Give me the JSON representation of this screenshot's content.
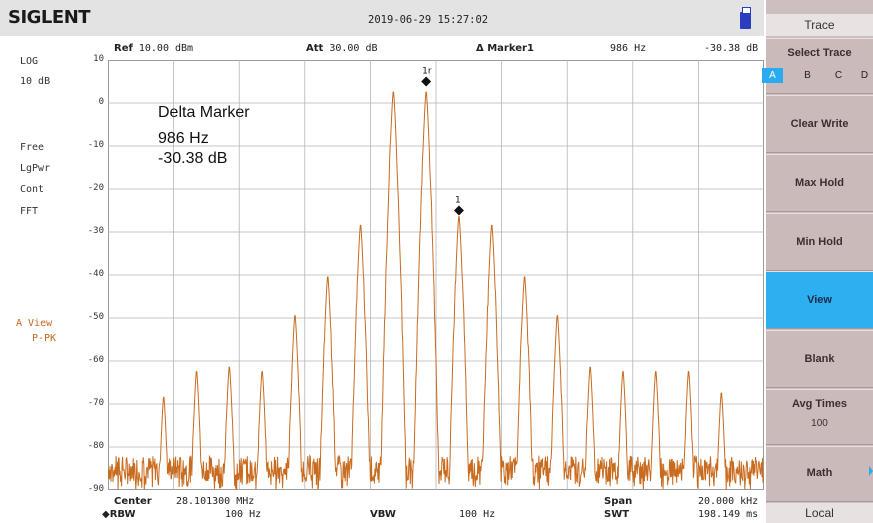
{
  "header": {
    "brand": "SIGLENT",
    "datetime": "2019-06-29  15:27:02"
  },
  "left_panel": {
    "scale_type": "LOG",
    "scale_div": "10 dB",
    "trig": "Free",
    "detector": "LgPwr",
    "sweep_mode": "Cont",
    "sweep_type": "FFT",
    "trace_state": "A View",
    "trace_det": "P-PK"
  },
  "status_row": {
    "ref_label": "Ref",
    "ref_value": "10.00 dBm",
    "att_label": "Att",
    "att_value": "30.00 dB",
    "marker_label": "Δ Marker1",
    "marker_freq": "986 Hz",
    "marker_amp": "-30.38 dB"
  },
  "annotation": {
    "line1": "Delta Marker",
    "line2": "986 Hz",
    "line3": "-30.38 dB"
  },
  "markers": {
    "ref_label": "1r",
    "delta_label": "1"
  },
  "bottom": {
    "center_label": "Center",
    "center_value": "28.101300 MHz",
    "span_label": "Span",
    "span_value": "20.000 kHz",
    "rbw_label": "◆RBW",
    "rbw_value": "100 Hz",
    "vbw_label": "VBW",
    "vbw_value": "100 Hz",
    "swt_label": "SWT",
    "swt_value": "198.149 ms"
  },
  "menu": {
    "title": "Trace",
    "select_trace": "Select Trace",
    "traces": [
      "A",
      "B",
      "C",
      "D"
    ],
    "selected_trace": "A",
    "items": [
      "Clear Write",
      "Max Hold",
      "Min Hold",
      "View",
      "Blank",
      "Avg Times",
      "Math"
    ],
    "active_item": "View",
    "avg_times_value": "100",
    "local": "Local"
  },
  "chart_data": {
    "type": "line",
    "y_ticks": [
      "10",
      "0",
      "-10",
      "-20",
      "-30",
      "-40",
      "-50",
      "-60",
      "-70",
      "-80",
      "-90"
    ],
    "ylim": [
      -90,
      10
    ],
    "x_divisions": 10,
    "trace_color": "#c86b1e",
    "peaks_x_frac": [
      0.085,
      0.135,
      0.185,
      0.235,
      0.285,
      0.335,
      0.385,
      0.435,
      0.485,
      0.535,
      0.585,
      0.635,
      0.685,
      0.735,
      0.785,
      0.835,
      0.885,
      0.935
    ],
    "peaks_dbm": [
      -68,
      -62,
      -61,
      -62,
      -49,
      -40,
      -28,
      3,
      3,
      -26,
      -28,
      -40,
      -49,
      -61,
      -62,
      -62,
      -62,
      -67
    ],
    "noise_floor_dbm": -88,
    "marker_ref": {
      "x_frac": 0.485,
      "y_dbm": 5
    },
    "marker_delta": {
      "x_frac": 0.535,
      "y_dbm": -25
    }
  }
}
